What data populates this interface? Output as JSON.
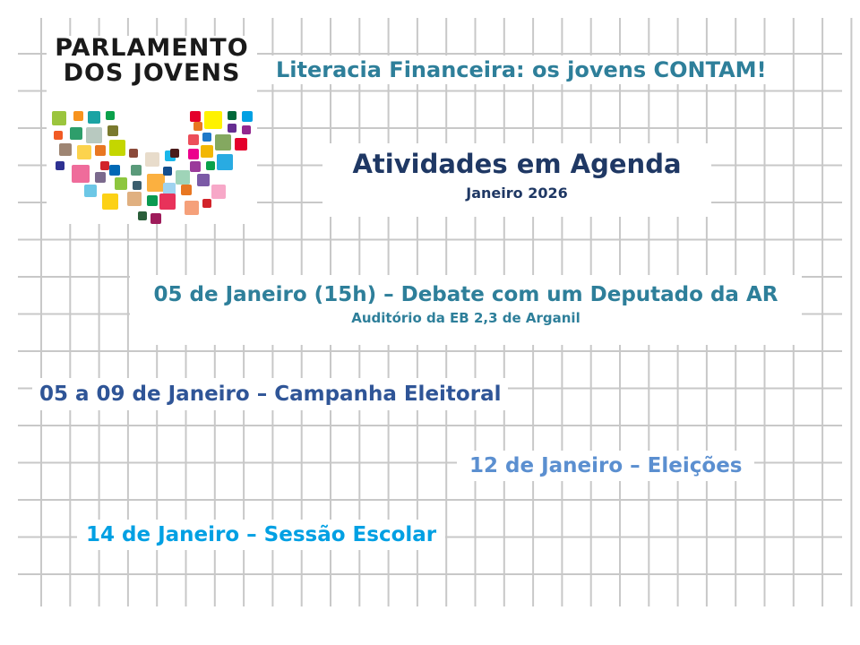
{
  "logo": {
    "line1": "PARLAMENTO",
    "line2": "DOS JOVENS"
  },
  "project_title": "Literacia Financeira:  os jovens CONTAM!",
  "heading": {
    "title": "Atividades em Agenda",
    "month": "Janeiro 2026"
  },
  "events": [
    {
      "title": "05 de Janeiro (15h) – Debate com um Deputado da AR",
      "location": "Auditório da EB 2,3 de Arganil"
    },
    {
      "title": "05 a 09 de Janeiro – Campanha Eleitoral"
    },
    {
      "title": "12 de Janeiro – Eleições"
    },
    {
      "title": "14 de Janeiro – Sessão Escolar"
    }
  ],
  "colors": {
    "project_title": "#2E7F9A",
    "heading": "#1F3864",
    "event1": "#2E7F9A",
    "event2": "#2F5597",
    "event3": "#5B8FD0",
    "event4": "#00A0E3",
    "grid": "#C8C8C8"
  }
}
